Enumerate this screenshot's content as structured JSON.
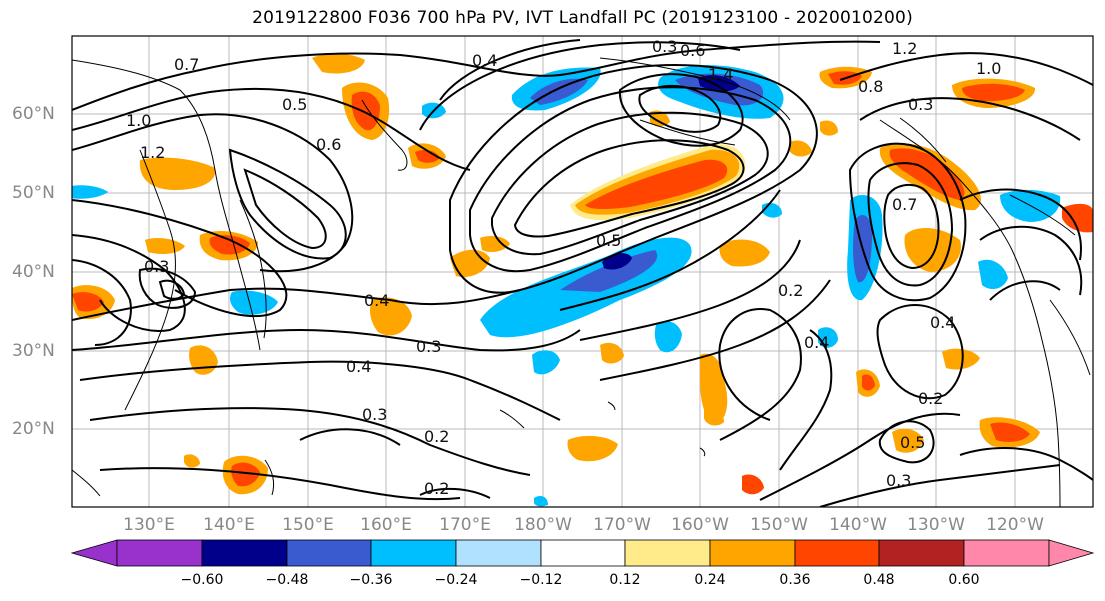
{
  "title": "2019122800 F036 700 hPa PV, IVT Landfall PC (2019123100 - 2020010200)",
  "map": {
    "lat_labels": [
      "60°N",
      "50°N",
      "40°N",
      "30°N",
      "20°N"
    ],
    "lon_labels": [
      "130°E",
      "140°E",
      "150°E",
      "160°E",
      "170°E",
      "180°W",
      "170°W",
      "160°W",
      "150°W",
      "140°W",
      "130°W",
      "120°W"
    ],
    "contour_labels": [
      "0.7",
      "0.4",
      "0.3",
      "0.6",
      "1.2",
      "1.0",
      "0.8",
      "1.4",
      "0.5",
      "0.6",
      "1.0",
      "1.2",
      "0.3",
      "0.7",
      "0.5",
      "0.3",
      "0.4",
      "0.3",
      "0.4",
      "0.3",
      "0.2",
      "0.4",
      "0.2",
      "0.4",
      "0.5",
      "0.2",
      "0.3",
      "0.2"
    ]
  },
  "colorbar": {
    "tick_labels": [
      "−0.60",
      "−0.48",
      "−0.36",
      "−0.24",
      "−0.12",
      "0.12",
      "0.24",
      "0.36",
      "0.48",
      "0.60"
    ],
    "colors": [
      "#9932CC",
      "#00008B",
      "#3A5BD0",
      "#00BFFF",
      "#B0E2FF",
      "#FFFFFF",
      "#FFEB8A",
      "#FFA500",
      "#FF4500",
      "#B22222",
      "#FF88AA"
    ]
  }
}
